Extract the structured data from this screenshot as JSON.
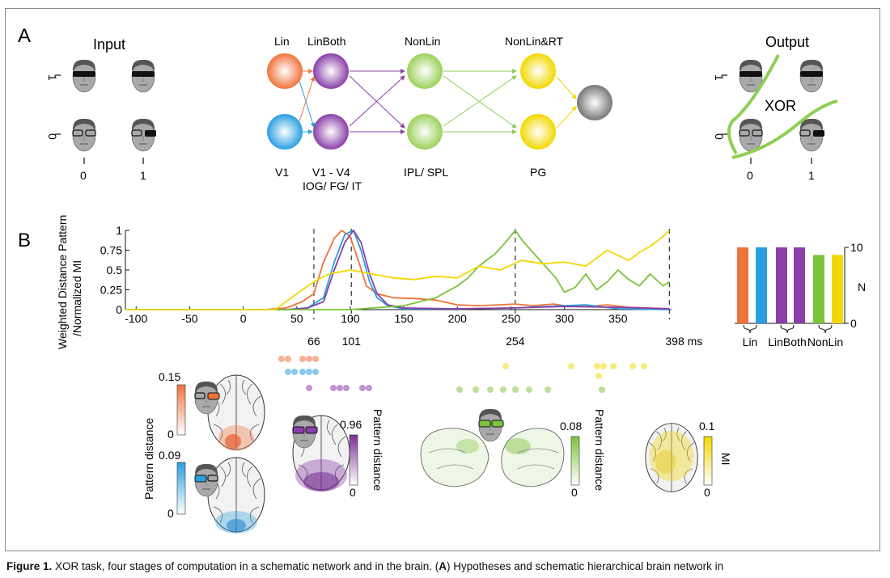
{
  "panel_a": {
    "label": "A",
    "input_title": "Input",
    "output_title": "Output",
    "xor_label": "XOR",
    "axis_0": "0",
    "axis_1": "1",
    "stages": {
      "lin": "Lin",
      "linboth": "LinBoth",
      "nonlin": "NonLin",
      "nonlin_rt": "NonLin&RT"
    },
    "regions": {
      "v1": "V1",
      "v1v4": "V1 - V4",
      "iog": "IOG/ FG/ IT",
      "ipl": "IPL/ SPL",
      "pg": "PG"
    }
  },
  "panel_b": {
    "label": "B",
    "ylabel_line1": "Weighted Distance Pattern",
    "ylabel_line2": "/Normalized MI",
    "marker_labels": [
      "66",
      "101",
      "254",
      "398 ms"
    ],
    "bar_axis_label": "N",
    "bar_groups": [
      "Lin",
      "LinBoth",
      "NonLin"
    ],
    "colorbars": [
      {
        "max": "0.15",
        "min": "0",
        "label": "Pattern distance"
      },
      {
        "max": "0.09",
        "min": "0",
        "label": "Pattern distance"
      },
      {
        "max": "0.96",
        "min": "0",
        "label": "Pattern distance"
      },
      {
        "max": "0.08",
        "min": "0",
        "label": "Pattern distance"
      },
      {
        "max": "0.1",
        "min": "0",
        "label": "MI"
      }
    ]
  },
  "colors": {
    "orange": "#f0733a",
    "blue": "#2a9fe0",
    "purple": "#8a3fa8",
    "green": "#7cc23a",
    "yellow": "#f2d800",
    "gray": "#8c8c8c"
  },
  "chart_data": [
    {
      "type": "line",
      "xlim": [
        -110,
        400
      ],
      "ylim": [
        0,
        1
      ],
      "xticks": [
        -100,
        -50,
        0,
        50,
        100,
        150,
        200,
        250,
        300,
        350
      ],
      "yticks": [
        0,
        0.25,
        0.5,
        0.75,
        1
      ],
      "markers_ms": [
        66,
        101,
        254,
        398
      ],
      "series": [
        {
          "color": "orange",
          "x": [
            -110,
            20,
            40,
            55,
            66,
            75,
            85,
            92,
            100,
            108,
            115,
            125,
            140,
            160,
            180,
            200,
            220,
            240,
            254,
            270,
            290,
            300,
            320,
            340,
            360,
            380,
            398
          ],
          "y": [
            0,
            0,
            0.02,
            0.1,
            0.2,
            0.6,
            0.9,
            1.0,
            0.92,
            0.6,
            0.3,
            0.2,
            0.15,
            0.14,
            0.12,
            0.06,
            0.05,
            0.06,
            0.07,
            0.05,
            0.07,
            0.05,
            0.04,
            0.06,
            0.03,
            0.02,
            0.01
          ]
        },
        {
          "color": "blue",
          "x": [
            -110,
            40,
            60,
            75,
            85,
            95,
            103,
            110,
            118,
            125,
            135,
            150,
            200,
            250,
            300,
            320,
            350,
            398
          ],
          "y": [
            0,
            0,
            0.02,
            0.15,
            0.6,
            0.95,
            1.0,
            0.75,
            0.35,
            0.15,
            0.05,
            0.01,
            0.01,
            0.02,
            0.05,
            0.06,
            0.01,
            0.0
          ]
        },
        {
          "color": "purple",
          "x": [
            -110,
            40,
            60,
            75,
            85,
            95,
            103,
            110,
            118,
            125,
            135,
            150,
            200,
            250,
            300,
            350,
            398
          ],
          "y": [
            0,
            0,
            0.02,
            0.1,
            0.5,
            0.85,
            1.0,
            0.85,
            0.45,
            0.2,
            0.06,
            0.02,
            0.01,
            0.02,
            0.04,
            0.03,
            0.01
          ]
        },
        {
          "color": "green",
          "x": [
            -110,
            100,
            150,
            180,
            200,
            210,
            220,
            235,
            245,
            254,
            262,
            272,
            282,
            292,
            300,
            310,
            320,
            330,
            340,
            350,
            360,
            370,
            380,
            392,
            398
          ],
          "y": [
            0,
            0,
            0.05,
            0.15,
            0.3,
            0.4,
            0.55,
            0.7,
            0.85,
            1.0,
            0.85,
            0.7,
            0.55,
            0.4,
            0.22,
            0.28,
            0.45,
            0.25,
            0.35,
            0.5,
            0.38,
            0.3,
            0.45,
            0.3,
            0.35
          ]
        },
        {
          "color": "yellow",
          "x": [
            -110,
            30,
            50,
            66,
            80,
            100,
            120,
            140,
            160,
            180,
            200,
            220,
            240,
            260,
            280,
            300,
            320,
            340,
            360,
            370,
            380,
            390,
            398
          ],
          "y": [
            0,
            0,
            0.2,
            0.35,
            0.45,
            0.5,
            0.45,
            0.4,
            0.38,
            0.42,
            0.4,
            0.55,
            0.5,
            0.62,
            0.58,
            0.6,
            0.55,
            0.75,
            0.62,
            0.72,
            0.8,
            0.9,
            1.0
          ]
        }
      ]
    },
    {
      "type": "bar",
      "ylim": [
        0,
        10
      ],
      "yticks": [
        0,
        10
      ],
      "categories": [
        "Lin",
        "Lin",
        "LinBoth",
        "LinBoth",
        "NonLin",
        "NonLin"
      ],
      "colors": [
        "orange",
        "blue",
        "purple",
        "purple",
        "green",
        "yellow"
      ],
      "values": [
        10,
        10,
        10,
        10,
        9,
        9
      ]
    }
  ]
}
